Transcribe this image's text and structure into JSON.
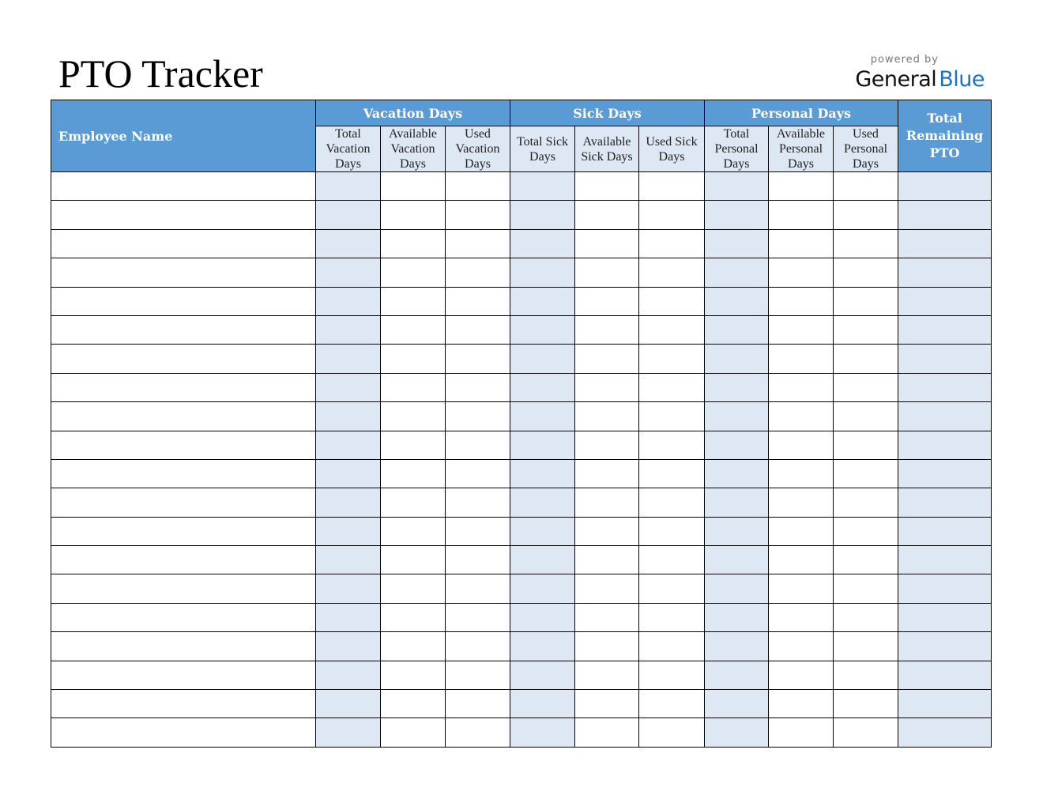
{
  "title": "PTO Tracker",
  "brand": {
    "powered_by": "powered by",
    "name_part1": "General",
    "name_part2": "Blue"
  },
  "colors": {
    "header": "#5b9bd5",
    "shaded": "#dde8f4",
    "brand_blue": "#1a75bc"
  },
  "table": {
    "employee_header": "Employee Name",
    "groups": [
      {
        "label": "Vacation Days",
        "columns": [
          "Total Vacation Days",
          "Available Vacation Days",
          "Used Vacation Days"
        ]
      },
      {
        "label": "Sick Days",
        "columns": [
          "Total Sick Days",
          "Available Sick Days",
          "Used Sick Days"
        ]
      },
      {
        "label": "Personal Days",
        "columns": [
          "Total Personal Days",
          "Available Personal Days",
          "Used Personal Days"
        ]
      }
    ],
    "total_header": "Total Remaining PTO",
    "rows": [
      [
        "",
        "",
        "",
        "",
        "",
        "",
        "",
        "",
        "",
        "",
        ""
      ],
      [
        "",
        "",
        "",
        "",
        "",
        "",
        "",
        "",
        "",
        "",
        ""
      ],
      [
        "",
        "",
        "",
        "",
        "",
        "",
        "",
        "",
        "",
        "",
        ""
      ],
      [
        "",
        "",
        "",
        "",
        "",
        "",
        "",
        "",
        "",
        "",
        ""
      ],
      [
        "",
        "",
        "",
        "",
        "",
        "",
        "",
        "",
        "",
        "",
        ""
      ],
      [
        "",
        "",
        "",
        "",
        "",
        "",
        "",
        "",
        "",
        "",
        ""
      ],
      [
        "",
        "",
        "",
        "",
        "",
        "",
        "",
        "",
        "",
        "",
        ""
      ],
      [
        "",
        "",
        "",
        "",
        "",
        "",
        "",
        "",
        "",
        "",
        ""
      ],
      [
        "",
        "",
        "",
        "",
        "",
        "",
        "",
        "",
        "",
        "",
        ""
      ],
      [
        "",
        "",
        "",
        "",
        "",
        "",
        "",
        "",
        "",
        "",
        ""
      ],
      [
        "",
        "",
        "",
        "",
        "",
        "",
        "",
        "",
        "",
        "",
        ""
      ],
      [
        "",
        "",
        "",
        "",
        "",
        "",
        "",
        "",
        "",
        "",
        ""
      ],
      [
        "",
        "",
        "",
        "",
        "",
        "",
        "",
        "",
        "",
        "",
        ""
      ],
      [
        "",
        "",
        "",
        "",
        "",
        "",
        "",
        "",
        "",
        "",
        ""
      ],
      [
        "",
        "",
        "",
        "",
        "",
        "",
        "",
        "",
        "",
        "",
        ""
      ],
      [
        "",
        "",
        "",
        "",
        "",
        "",
        "",
        "",
        "",
        "",
        ""
      ],
      [
        "",
        "",
        "",
        "",
        "",
        "",
        "",
        "",
        "",
        "",
        ""
      ],
      [
        "",
        "",
        "",
        "",
        "",
        "",
        "",
        "",
        "",
        "",
        ""
      ],
      [
        "",
        "",
        "",
        "",
        "",
        "",
        "",
        "",
        "",
        "",
        ""
      ],
      [
        "",
        "",
        "",
        "",
        "",
        "",
        "",
        "",
        "",
        "",
        ""
      ]
    ]
  }
}
